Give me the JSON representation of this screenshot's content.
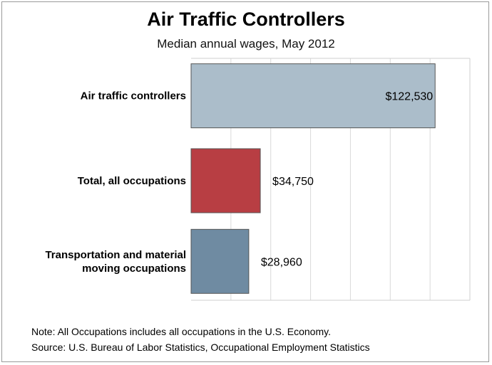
{
  "chart_data": {
    "type": "bar",
    "orientation": "horizontal",
    "title": "Air Traffic Controllers",
    "subtitle": "Median annual wages, May 2012",
    "categories": [
      [
        "Air traffic controllers"
      ],
      [
        "Total, all occupations"
      ],
      [
        "Transportation and material",
        "moving occupations"
      ]
    ],
    "values": [
      122530,
      34750,
      28960
    ],
    "value_labels": [
      "$122,530",
      "$34,750",
      "$28,960"
    ],
    "colors": [
      "#abbdca",
      "#b83e43",
      "#6f8ba2"
    ],
    "xlim": [
      0,
      140000
    ],
    "grid": true
  },
  "footer": {
    "note": "Note: All Occupations includes all occupations in the U.S. Economy.",
    "source": "Source: U.S. Bureau of Labor Statistics, Occupational Employment Statistics"
  }
}
